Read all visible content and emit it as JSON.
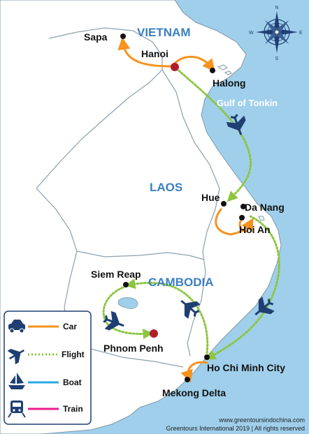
{
  "countries": {
    "vietnam": "VIETNAM",
    "laos": "LAOS",
    "cambodia": "CAMBODIA"
  },
  "sea": {
    "gulf": "Gulf of Tonkin"
  },
  "cities": {
    "sapa": "Sapa",
    "hanoi": "Hanoi",
    "halong": "Halong",
    "hue": "Hue",
    "da_nang": "Da Nang",
    "hoi_an": "Hoi An",
    "siem_reap": "Siem Reap",
    "phnom_penh": "Phnom Penh",
    "ho_chi_minh": "Ho Chi Minh City",
    "mekong": "Mekong Delta"
  },
  "legend": {
    "car": "Car",
    "flight": "Flight",
    "boat": "Boat",
    "train": "Train"
  },
  "colors": {
    "sea": "#9fcfeb",
    "land": "#ffffff",
    "car": "#f7931e",
    "flight": "#8cc63f",
    "boat": "#29abe2",
    "train": "#e91e8c",
    "capital": "#b0202a",
    "icon": "#1f3f72"
  },
  "compass": {
    "n": "N",
    "e": "E",
    "s": "S",
    "w": "W"
  },
  "credits": {
    "url": "www.greentoursindochina.com",
    "copyright": "Greentours International 2019 | All rights reserved"
  }
}
